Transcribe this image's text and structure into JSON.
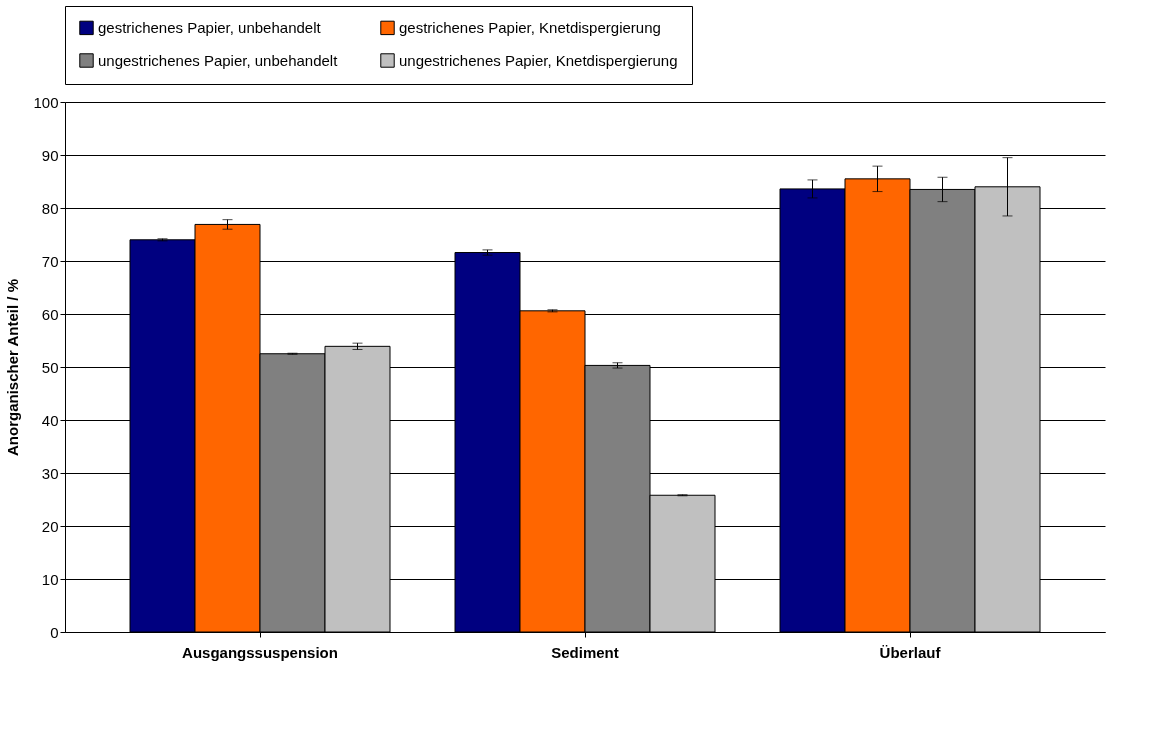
{
  "chart_data": {
    "type": "bar",
    "ylabel": "Anorganischer Anteil / %",
    "categories": [
      "Ausgangssuspension",
      "Sediment",
      "Überlauf"
    ],
    "series": [
      {
        "name": "gestrichenes Papier, unbehandelt",
        "color": "#000080",
        "values": [
          74.0,
          71.6,
          83.6
        ],
        "errors": [
          0.2,
          0.5,
          1.7
        ]
      },
      {
        "name": "gestrichenes Papier, Knetdispergierung",
        "color": "#ff6600",
        "values": [
          76.9,
          60.6,
          85.5
        ],
        "errors": [
          0.9,
          0.2,
          2.4
        ]
      },
      {
        "name": "ungestrichenes Papier, unbehandelt",
        "color": "#808080",
        "values": [
          52.5,
          50.3,
          83.5
        ],
        "errors": [
          0.1,
          0.5,
          2.3
        ]
      },
      {
        "name": "ungestrichenes Papier, Knetdispergierung",
        "color": "#c0c0c0",
        "values": [
          53.9,
          25.8,
          84.0
        ],
        "errors": [
          0.6,
          0.1,
          5.5
        ]
      }
    ],
    "ylim": [
      0,
      100
    ],
    "yticks": [
      0,
      10,
      20,
      30,
      40,
      50,
      60,
      70,
      80,
      90,
      100
    ],
    "grid": "y",
    "legend": "top"
  }
}
